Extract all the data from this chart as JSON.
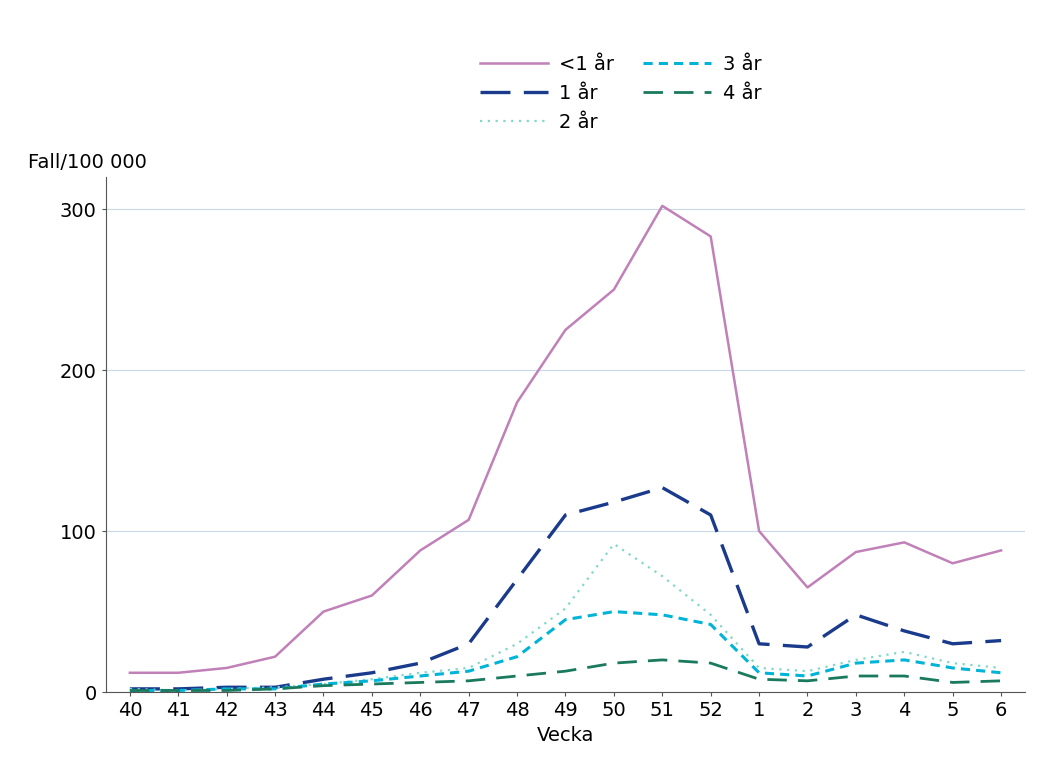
{
  "x_labels": [
    "40",
    "41",
    "42",
    "43",
    "44",
    "45",
    "46",
    "47",
    "48",
    "49",
    "50",
    "51",
    "52",
    "1",
    "2",
    "3",
    "4",
    "5",
    "6"
  ],
  "x_values": [
    0,
    1,
    2,
    3,
    4,
    5,
    6,
    7,
    8,
    9,
    10,
    11,
    12,
    13,
    14,
    15,
    16,
    17,
    18
  ],
  "series": {
    "<1 ar": {
      "label": "<1 år",
      "values": [
        12,
        12,
        15,
        22,
        50,
        60,
        88,
        107,
        180,
        225,
        250,
        302,
        283,
        100,
        65,
        87,
        93,
        80,
        88
      ],
      "color": "#c080b8",
      "linestyle": "solid",
      "linewidth": 1.8,
      "dashes": null
    },
    "1 ar": {
      "label": "1 år",
      "values": [
        2,
        2,
        3,
        3,
        8,
        12,
        18,
        30,
        70,
        110,
        118,
        127,
        110,
        30,
        28,
        48,
        38,
        30,
        32
      ],
      "color": "#1a3a8c",
      "linestyle": "dashed",
      "linewidth": 2.4,
      "dashes": [
        9,
        4
      ]
    },
    "2 ar": {
      "label": "2 år",
      "values": [
        2,
        1,
        2,
        3,
        5,
        8,
        12,
        15,
        30,
        52,
        92,
        72,
        48,
        15,
        13,
        20,
        25,
        18,
        15
      ],
      "color": "#80d8c8",
      "linestyle": "dotted",
      "linewidth": 1.6,
      "dashes": [
        1,
        2.5
      ]
    },
    "3 ar": {
      "label": "3 år",
      "values": [
        1,
        1,
        2,
        2,
        5,
        7,
        10,
        13,
        22,
        45,
        50,
        48,
        42,
        12,
        10,
        18,
        20,
        15,
        12
      ],
      "color": "#00b4d8",
      "linestyle": "dotted",
      "linewidth": 2.2,
      "dashes": [
        3,
        2
      ]
    },
    "4 ar": {
      "label": "4 år",
      "values": [
        1,
        1,
        1,
        2,
        4,
        5,
        6,
        7,
        10,
        13,
        18,
        20,
        18,
        8,
        7,
        10,
        10,
        6,
        7
      ],
      "color": "#1a7a5e",
      "linestyle": "dashed",
      "linewidth": 2.0,
      "dashes": [
        7,
        4
      ]
    }
  },
  "xlabel": "Vecka",
  "ylabel_text": "Fall/100 000",
  "ylim": [
    0,
    320
  ],
  "yticks": [
    0,
    100,
    200,
    300
  ],
  "axis_fontsize": 14,
  "tick_fontsize": 14,
  "legend_fontsize": 14,
  "background_color": "#ffffff",
  "grid_color": "#c8d8e4"
}
